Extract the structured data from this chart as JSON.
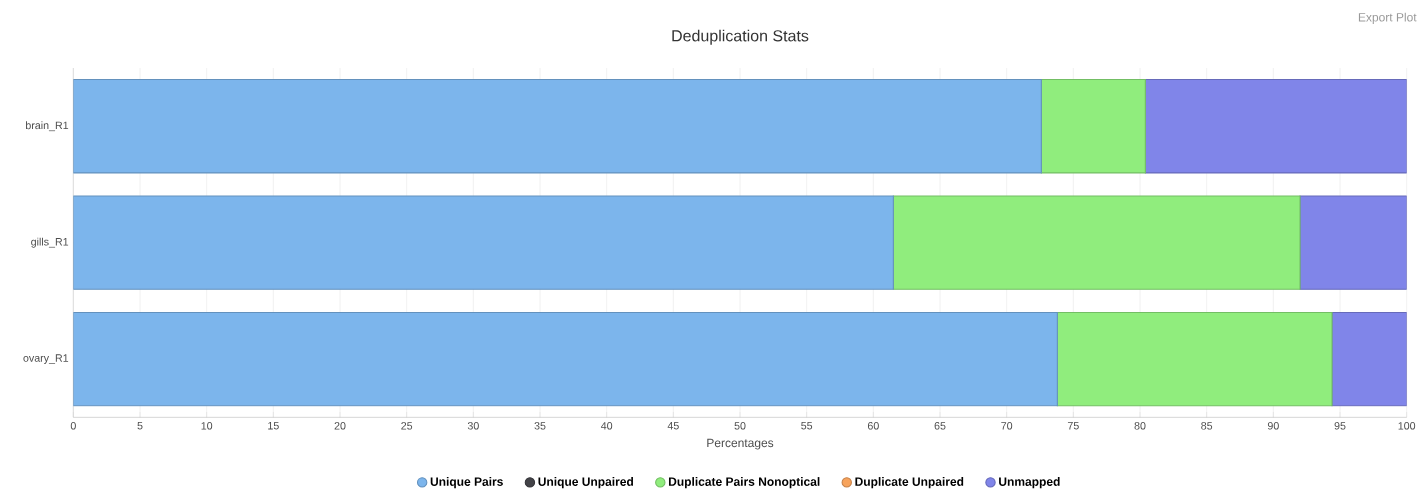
{
  "chart_data": {
    "type": "bar",
    "orientation": "horizontal",
    "stacked": true,
    "title": "Deduplication Stats",
    "xlabel": "Percentages",
    "categories": [
      "brain_R1",
      "gills_R1",
      "ovary_R1"
    ],
    "series": [
      {
        "name": "Unique Pairs",
        "color": "#7cb5ec",
        "values": [
          72.6,
          61.5,
          73.8
        ]
      },
      {
        "name": "Unique Unpaired",
        "color": "#434348",
        "values": [
          0,
          0,
          0
        ]
      },
      {
        "name": "Duplicate Pairs Nonoptical",
        "color": "#90ed7d",
        "values": [
          7.8,
          30.5,
          20.6
        ]
      },
      {
        "name": "Duplicate Unpaired",
        "color": "#f7a35c",
        "values": [
          0,
          0,
          0
        ]
      },
      {
        "name": "Unmapped",
        "color": "#8085e9",
        "values": [
          19.6,
          8.0,
          5.6
        ]
      }
    ],
    "xlim": [
      0,
      100
    ],
    "xticks": [
      0,
      5,
      10,
      15,
      20,
      25,
      30,
      35,
      40,
      45,
      50,
      55,
      60,
      65,
      70,
      75,
      80,
      85,
      90,
      95,
      100
    ],
    "grid": "x",
    "legend": "bottom",
    "annotations": [
      "Export Plot"
    ]
  }
}
